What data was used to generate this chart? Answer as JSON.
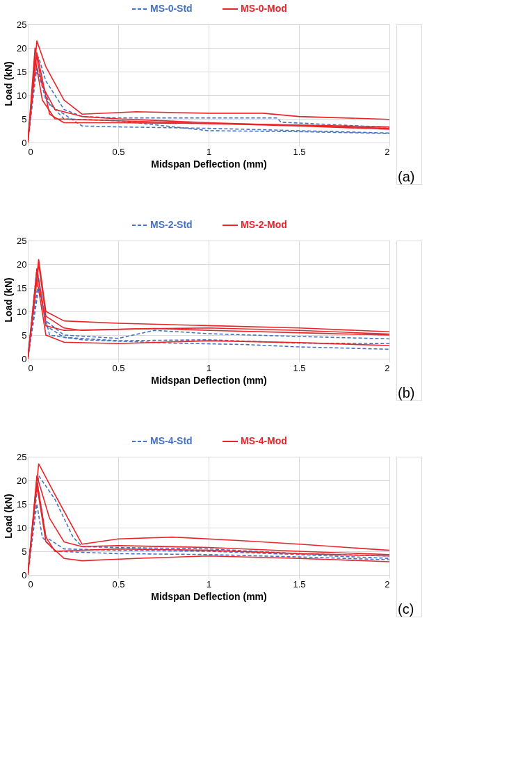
{
  "chart_data": [
    {
      "type": "line",
      "xlabel": "Midspan Deflection (mm)",
      "ylabel": "Load (kN)",
      "xlim": [
        0,
        2
      ],
      "xticks": [
        0,
        0.5,
        1,
        1.5,
        2
      ],
      "ylim": [
        0,
        25
      ],
      "yticks": [
        0,
        5,
        10,
        15,
        20,
        25
      ],
      "grid": true,
      "legend": "top",
      "marker": "none",
      "annotations": [
        "(a)"
      ],
      "series": [
        {
          "name": "MS-0-Std",
          "color": "#4472c4",
          "line_style": "dashed",
          "x": [
            0,
            0.04,
            0.06,
            0.1,
            0.2,
            0.3,
            0.5,
            1.0,
            1.38,
            1.4,
            2
          ],
          "values": [
            0,
            17,
            18,
            13,
            7,
            5.5,
            5.2,
            5.2,
            5.2,
            4.3,
            3.2
          ]
        },
        {
          "color": "#4472c4",
          "line_style": "dashed",
          "x": [
            0,
            0.04,
            0.07,
            0.12,
            0.3,
            0.5,
            1.0,
            1.5,
            2
          ],
          "values": [
            0,
            15,
            14,
            8,
            3.5,
            3.3,
            3.0,
            2.5,
            2.0
          ]
        },
        {
          "color": "#4472c4",
          "line_style": "dashed",
          "x": [
            0,
            0.05,
            0.1,
            0.2,
            0.5,
            1.0,
            1.5,
            2
          ],
          "values": [
            0,
            16,
            9,
            5,
            4.6,
            2.5,
            2.3,
            1.9
          ]
        },
        {
          "name": "MS-0-Mod",
          "color": "#e8262a",
          "line_style": "solid",
          "x": [
            0,
            0.05,
            0.1,
            0.2,
            0.3,
            0.6,
            1.0,
            1.3,
            1.5,
            2
          ],
          "values": [
            0,
            21.5,
            16,
            9,
            6,
            6.5,
            6.2,
            6.2,
            5.5,
            4.9
          ]
        },
        {
          "color": "#e8262a",
          "line_style": "solid",
          "x": [
            0,
            0.04,
            0.08,
            0.15,
            0.3,
            0.5,
            1,
            1.5,
            2
          ],
          "values": [
            0,
            20,
            12,
            7,
            5.5,
            5,
            4.2,
            3.6,
            3.0
          ]
        },
        {
          "color": "#e8262a",
          "line_style": "solid",
          "x": [
            0,
            0.04,
            0.08,
            0.15,
            0.5,
            1,
            1.5,
            2
          ],
          "values": [
            0,
            18,
            9,
            5,
            4.6,
            4,
            3.5,
            2.8
          ]
        },
        {
          "color": "#e8262a",
          "line_style": "solid",
          "x": [
            0,
            0.05,
            0.12,
            0.2,
            0.5,
            1,
            1.5,
            2
          ],
          "values": [
            0,
            19,
            6,
            4.2,
            4.2,
            4,
            3.7,
            3.3
          ]
        }
      ]
    },
    {
      "type": "line",
      "xlabel": "Midspan Deflection (mm)",
      "ylabel": "Load (kN)",
      "xlim": [
        0,
        2
      ],
      "xticks": [
        0,
        0.5,
        1,
        1.5,
        2
      ],
      "ylim": [
        0,
        25
      ],
      "yticks": [
        0,
        5,
        10,
        15,
        20,
        25
      ],
      "grid": true,
      "legend": "top",
      "marker": "none",
      "annotations": [
        "(b)"
      ],
      "series": [
        {
          "name": "MS-2-Std",
          "color": "#4472c4",
          "line_style": "dashed",
          "x": [
            0,
            0.05,
            0.1,
            0.2,
            0.5,
            0.7,
            1,
            1.5,
            2
          ],
          "values": [
            0,
            19,
            8,
            5,
            4.3,
            6,
            5.3,
            4.7,
            4.2
          ]
        },
        {
          "color": "#4472c4",
          "line_style": "dashed",
          "x": [
            0,
            0.06,
            0.1,
            0.2,
            0.5,
            1,
            1.5,
            2
          ],
          "values": [
            0,
            17,
            7,
            4.5,
            3.8,
            4,
            3.3,
            3.2
          ]
        },
        {
          "color": "#4472c4",
          "line_style": "dashed",
          "x": [
            0,
            0.06,
            0.12,
            0.3,
            0.8,
            1.2,
            1.5,
            2
          ],
          "values": [
            0,
            15,
            5,
            4,
            3.3,
            3,
            2.5,
            2
          ]
        },
        {
          "name": "MS-2-Mod",
          "color": "#e8262a",
          "line_style": "solid",
          "x": [
            0,
            0.06,
            0.1,
            0.2,
            0.5,
            1,
            1.5,
            2
          ],
          "values": [
            0,
            21,
            10,
            8,
            7.5,
            7,
            6.5,
            5.7
          ]
        },
        {
          "color": "#e8262a",
          "line_style": "solid",
          "x": [
            0,
            0.06,
            0.1,
            0.2,
            0.3,
            0.6,
            1,
            1.5,
            2
          ],
          "values": [
            0,
            20,
            9,
            6.5,
            6,
            6.3,
            6.5,
            6,
            5.2
          ]
        },
        {
          "color": "#e8262a",
          "line_style": "solid",
          "x": [
            0,
            0.05,
            0.1,
            0.2,
            0.7,
            1,
            1.5,
            2
          ],
          "values": [
            0,
            19,
            7,
            6,
            6.4,
            6,
            5.5,
            5
          ]
        },
        {
          "color": "#e8262a",
          "line_style": "solid",
          "x": [
            0,
            0.05,
            0.1,
            0.2,
            0.5,
            1,
            1.5,
            2
          ],
          "values": [
            0,
            17,
            5,
            3.5,
            3.2,
            3.8,
            3.4,
            2.8
          ]
        }
      ]
    },
    {
      "type": "line",
      "xlabel": "Midspan Deflection (mm)",
      "ylabel": "Load (kN)",
      "xlim": [
        0,
        2
      ],
      "xticks": [
        0,
        0.5,
        1,
        1.5,
        2
      ],
      "ylim": [
        0,
        25
      ],
      "yticks": [
        0,
        5,
        10,
        15,
        20,
        25
      ],
      "grid": true,
      "legend": "top",
      "marker": "none",
      "annotations": [
        "(c)"
      ],
      "series": [
        {
          "name": "MS-4-Std",
          "color": "#4472c4",
          "line_style": "dashed",
          "x": [
            0,
            0.06,
            0.15,
            0.25,
            0.3,
            0.5,
            1,
            1.5,
            2
          ],
          "values": [
            0,
            21,
            16,
            8,
            6,
            5.8,
            5.5,
            4.5,
            4
          ]
        },
        {
          "color": "#4472c4",
          "line_style": "dashed",
          "x": [
            0,
            0.05,
            0.1,
            0.2,
            0.5,
            1,
            1.5,
            2
          ],
          "values": [
            0,
            20,
            8,
            5.5,
            5.2,
            5,
            4.3,
            3.5
          ]
        },
        {
          "color": "#4472c4",
          "line_style": "dashed",
          "x": [
            0,
            0.05,
            0.08,
            0.15,
            0.5,
            1,
            1.5,
            2
          ],
          "values": [
            0,
            15,
            8,
            5,
            4.5,
            4.3,
            3.8,
            3.2
          ]
        },
        {
          "name": "MS-4-Mod",
          "color": "#e8262a",
          "line_style": "solid",
          "x": [
            0,
            0.06,
            0.15,
            0.25,
            0.3,
            0.5,
            0.8,
            1.2,
            1.5,
            2
          ],
          "values": [
            0,
            23.5,
            17,
            10,
            6.5,
            7.6,
            8,
            7.2,
            6.5,
            5.2
          ]
        },
        {
          "color": "#e8262a",
          "line_style": "solid",
          "x": [
            0,
            0.05,
            0.12,
            0.2,
            0.3,
            0.5,
            1,
            1.5,
            2
          ],
          "values": [
            0,
            21,
            12,
            7,
            6,
            6.2,
            5.8,
            5,
            4.3
          ]
        },
        {
          "color": "#e8262a",
          "line_style": "solid",
          "x": [
            0,
            0.05,
            0.1,
            0.15,
            0.5,
            1,
            1.5,
            2
          ],
          "values": [
            0,
            20,
            8,
            5,
            5.5,
            5.2,
            4.5,
            4
          ]
        },
        {
          "color": "#e8262a",
          "line_style": "solid",
          "x": [
            0,
            0.05,
            0.1,
            0.2,
            0.3,
            0.6,
            1,
            1.5,
            2
          ],
          "values": [
            0,
            19,
            7,
            3.5,
            3,
            3.5,
            4,
            3.5,
            2.8
          ]
        }
      ]
    }
  ]
}
